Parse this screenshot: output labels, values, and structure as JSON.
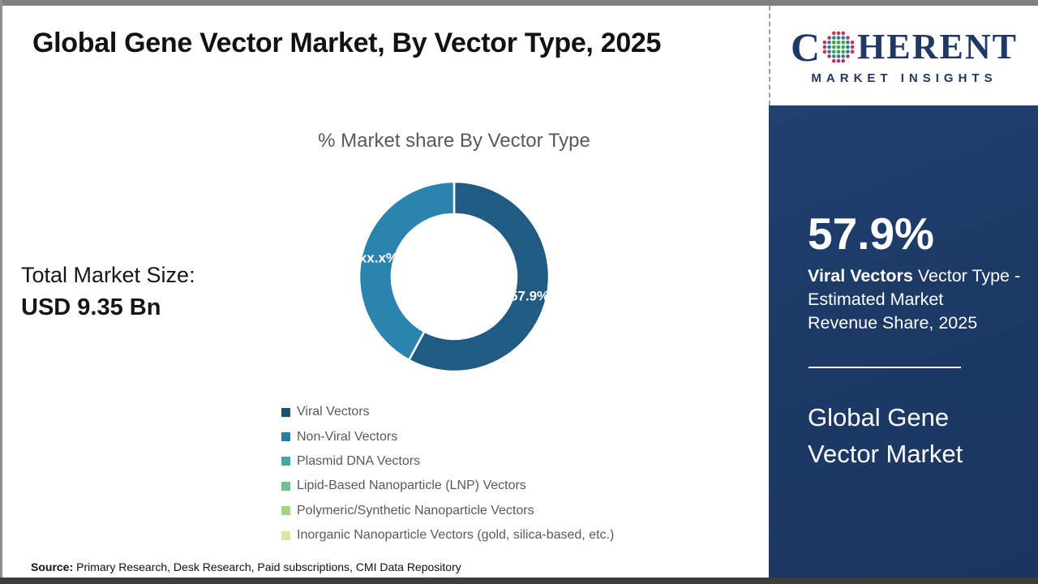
{
  "header": {
    "title": "Global Gene Vector Market, By Vector Type, 2025"
  },
  "logo": {
    "brand_first_letter": "C",
    "brand_rest": "HERENT",
    "brand_sub": "MARKET INSIGHTS"
  },
  "chart_data": {
    "type": "pie",
    "donut": true,
    "title": "% Market share By Vector Type",
    "slices": [
      {
        "name": "Viral Vectors",
        "value": 57.9,
        "label": "57.9%",
        "color": "#1f5b82"
      },
      {
        "name": "Non-Viral Vectors",
        "value": 42.1,
        "label": "xx.x%",
        "color": "#2a84ad"
      }
    ],
    "legend_position": "bottom",
    "legend": [
      {
        "label": "Viral Vectors",
        "color": "#1d5071"
      },
      {
        "label": "Non-Viral Vectors",
        "color": "#2180a6"
      },
      {
        "label": "Plasmid DNA Vectors",
        "color": "#45a3ab"
      },
      {
        "label": "Lipid-Based Nanoparticle (LNP) Vectors",
        "color": "#72bf8d"
      },
      {
        "label": "Polymeric/Synthetic Nanoparticle Vectors",
        "color": "#a5d38c"
      },
      {
        "label": "Inorganic Nanoparticle Vectors (gold, silica-based, etc.)",
        "color": "#d9e7a3"
      }
    ]
  },
  "stats": {
    "total_label": "Total Market Size:",
    "total_value": "USD 9.35 Bn"
  },
  "sidebar": {
    "stat_value": "57.9%",
    "stat_desc_bold": "Viral Vectors",
    "stat_desc_line1_rest": " Vector Type -",
    "stat_desc_line2": "Estimated Market",
    "stat_desc_line3": "Revenue Share, 2025",
    "market_name": "Global Gene Vector Market"
  },
  "footer": {
    "source_label": "Source:",
    "source_text": "Primary Research, Desk Research, Paid subscriptions, CMI Data Repository"
  },
  "colors": {
    "sidebar_background": "#1d3a66",
    "brand_navy": "#1f3864",
    "slice_dark_blue": "#1f5b82",
    "slice_teal": "#2a84ad",
    "muted_text": "#595959"
  }
}
